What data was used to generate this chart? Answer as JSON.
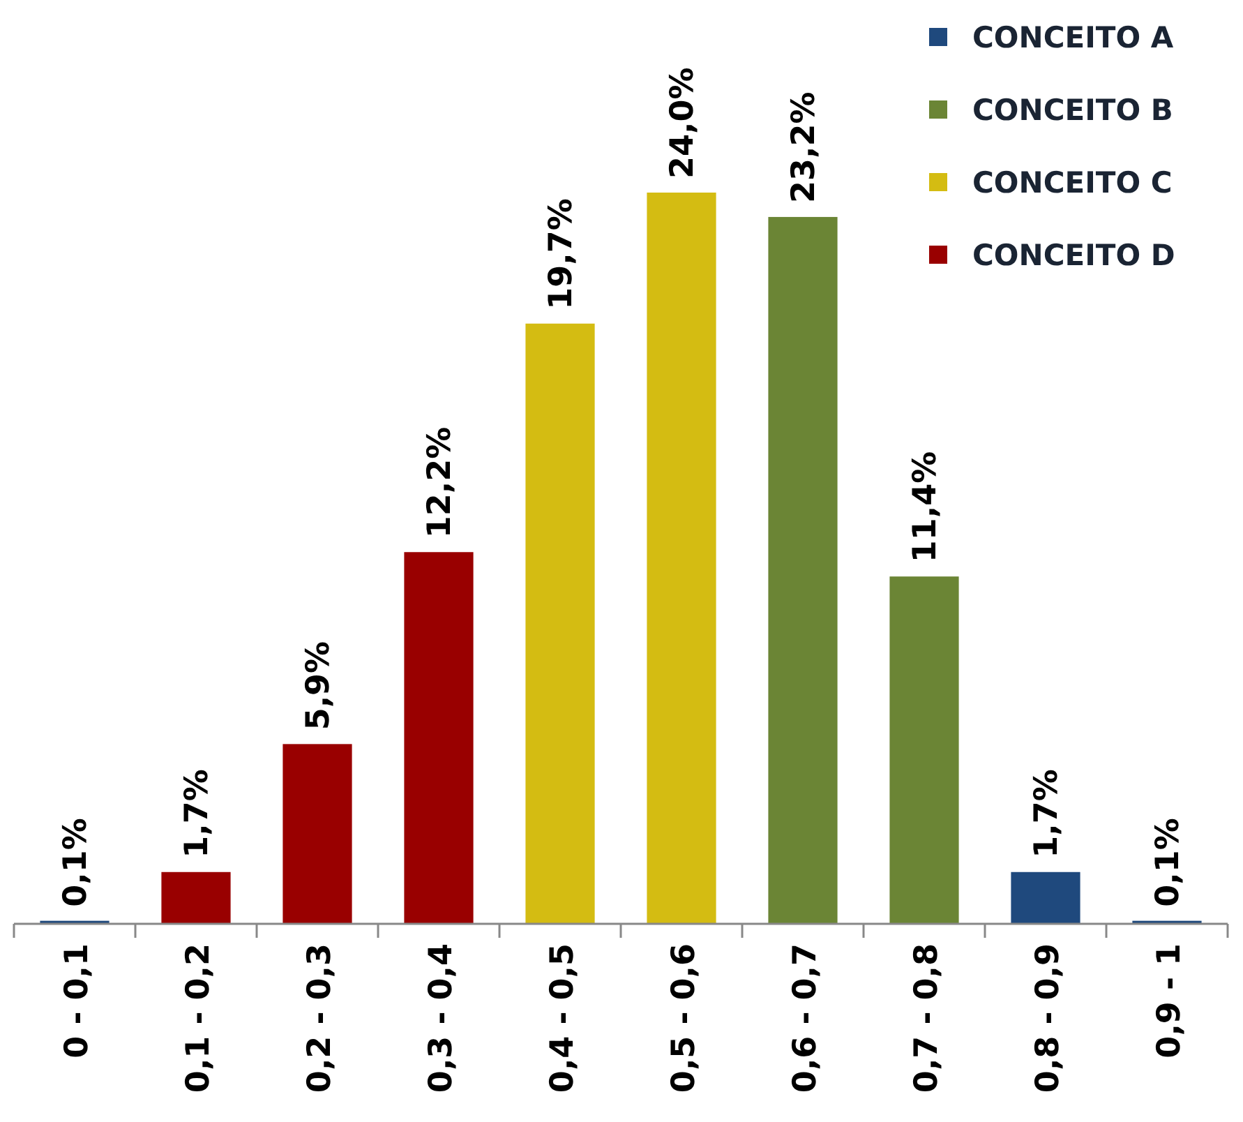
{
  "chart_data": {
    "type": "bar",
    "stacked": true,
    "legend": "top right",
    "categories": [
      "0 - 0,1",
      "0,1 - 0,2",
      "0,2 - 0,3",
      "0,3 - 0,4",
      "0,4 - 0,5",
      "0,5 - 0,6",
      "0,6 - 0,7",
      "0,7 - 0,8",
      "0,8 - 0,9",
      "0,9 - 1"
    ],
    "series": [
      {
        "name": "CONCEITO A",
        "color": "#1f497d",
        "values": [
          0.1,
          null,
          null,
          null,
          null,
          null,
          null,
          null,
          1.7,
          0.1
        ],
        "value_labels": [
          "0,1%",
          null,
          null,
          null,
          null,
          null,
          null,
          null,
          "1,7%",
          "0,1%"
        ]
      },
      {
        "name": "CONCEITO B",
        "color": "#6b8535",
        "values": [
          null,
          null,
          null,
          null,
          null,
          null,
          23.2,
          11.4,
          null,
          null
        ],
        "value_labels": [
          null,
          null,
          null,
          null,
          null,
          null,
          "23,2%",
          "11,4%",
          null,
          null
        ]
      },
      {
        "name": "CONCEITO C",
        "color": "#d4bc12",
        "values": [
          null,
          null,
          null,
          null,
          19.7,
          24.0,
          null,
          null,
          null,
          null
        ],
        "value_labels": [
          null,
          null,
          null,
          null,
          "19,7%",
          "24,0%",
          null,
          null,
          null,
          null
        ]
      },
      {
        "name": "CONCEITO D",
        "color": "#990000",
        "values": [
          null,
          1.7,
          5.9,
          12.2,
          null,
          null,
          null,
          null,
          null,
          null
        ],
        "value_labels": [
          null,
          "1,7%",
          "5,9%",
          "12,2%",
          null,
          null,
          null,
          null,
          null,
          null
        ]
      }
    ]
  }
}
